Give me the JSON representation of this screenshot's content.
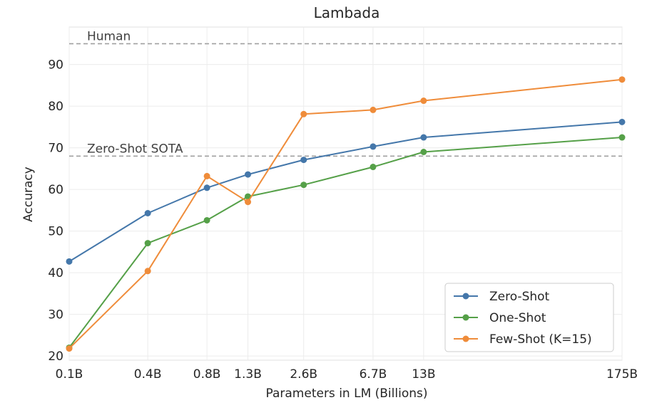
{
  "chart_data": {
    "type": "line",
    "title": "Lambada",
    "xlabel": "Parameters in LM (Billions)",
    "ylabel": "Accuracy",
    "categories": [
      "0.1B",
      "0.4B",
      "0.8B",
      "1.3B",
      "2.6B",
      "6.7B",
      "13B",
      "175B"
    ],
    "x": [
      0.125,
      0.35,
      0.76,
      1.3,
      2.7,
      6.7,
      13,
      175
    ],
    "x_scale": "log",
    "ylim": [
      19,
      99
    ],
    "yticks": [
      20,
      30,
      40,
      50,
      60,
      70,
      80,
      90
    ],
    "grid": true,
    "legend_position": "lower-right",
    "series": [
      {
        "name": "Zero-Shot",
        "color": "#4477aa",
        "values": [
          42.7,
          54.3,
          60.4,
          63.6,
          67.1,
          70.3,
          72.5,
          76.2
        ]
      },
      {
        "name": "One-Shot",
        "color": "#55a048",
        "values": [
          22.0,
          47.1,
          52.6,
          58.3,
          61.1,
          65.4,
          69.0,
          72.5
        ]
      },
      {
        "name": "Few-Shot (K=15)",
        "color": "#ef8c3a",
        "values": [
          21.8,
          40.4,
          63.2,
          57.0,
          78.1,
          79.1,
          81.3,
          86.4
        ]
      }
    ],
    "reference_lines": [
      {
        "label": "Human",
        "value": 95.0,
        "color": "#a0a0a0"
      },
      {
        "label": "Zero-Shot SOTA",
        "value": 68.0,
        "color": "#a0a0a0"
      }
    ]
  }
}
